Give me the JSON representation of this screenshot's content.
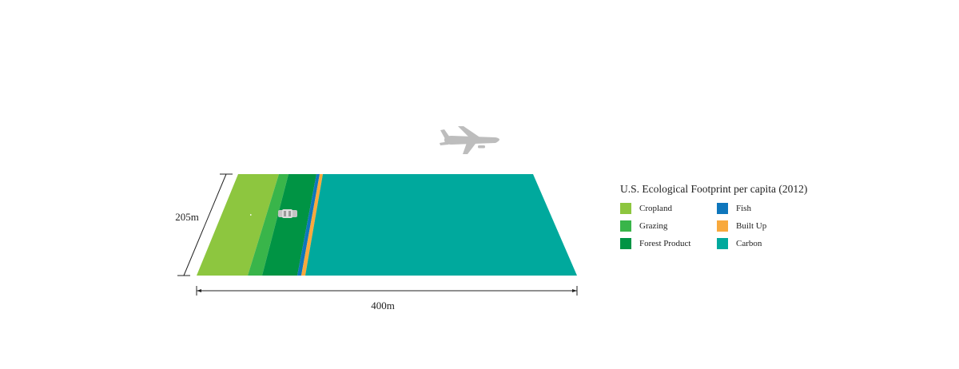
{
  "diagram": {
    "depth_label": "205m",
    "width_label": "400m"
  },
  "legend": {
    "title": "U.S. Ecological Footprint per capita (2012)",
    "items": [
      {
        "key": "cropland",
        "label": "Cropland",
        "color": "#8dc63f"
      },
      {
        "key": "fish",
        "label": "Fish",
        "color": "#0e76bc"
      },
      {
        "key": "grazing",
        "label": "Grazing",
        "color": "#39b54a"
      },
      {
        "key": "built_up",
        "label": "Built Up",
        "color": "#f8a93d"
      },
      {
        "key": "forest_product",
        "label": "Forest Product",
        "color": "#009444"
      },
      {
        "key": "carbon",
        "label": "Carbon",
        "color": "#00a99d"
      }
    ]
  },
  "icons": {
    "airplane": "airplane-icon",
    "car": "car-icon"
  }
}
